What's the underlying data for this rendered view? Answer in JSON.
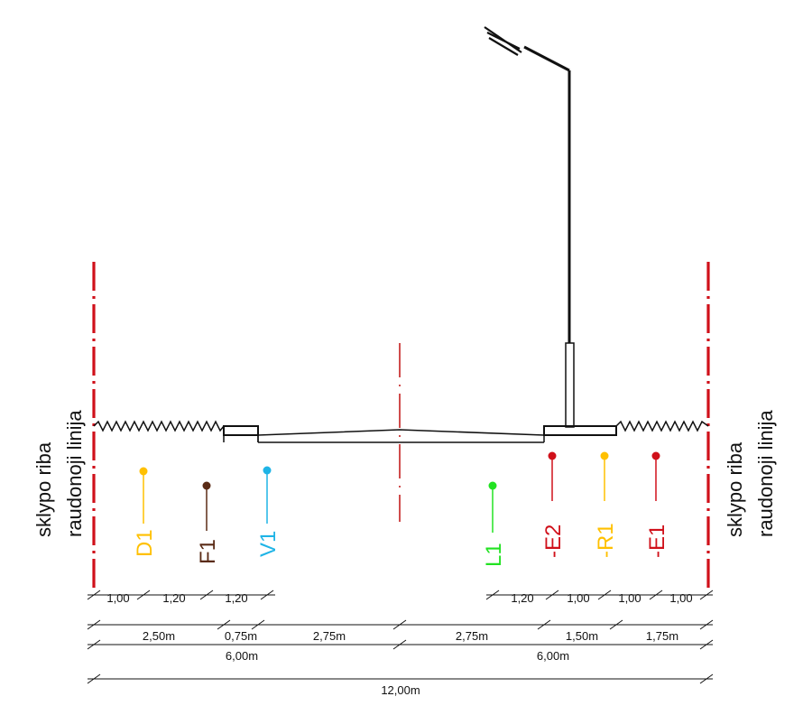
{
  "boundary": {
    "left_label_line1": "sklypo riba",
    "left_label_line2": "raudonoji linija",
    "right_label_line1": "sklypo riba",
    "right_label_line2": "raudonoji linija"
  },
  "utilities": {
    "D1": {
      "label": "D1",
      "color": "#FFC000"
    },
    "F1": {
      "label": "F1",
      "color": "#5A2B16"
    },
    "V1": {
      "label": "V1",
      "color": "#1FB4E6"
    },
    "L1": {
      "label": "L1",
      "color": "#22E222"
    },
    "E2": {
      "label": "-E2",
      "color": "#D0101A"
    },
    "R1": {
      "label": "-R1",
      "color": "#FFC000"
    },
    "E1": {
      "label": "-E1",
      "color": "#D0101A"
    }
  },
  "dimensions": {
    "row1": [
      "1,00",
      "1,20",
      "1,20",
      "1,20",
      "1,00",
      "1,00",
      "1,00"
    ],
    "row2": [
      "2,50m",
      "0,75m",
      "2,75m",
      "2,75m",
      "1,50m",
      "1,75m"
    ],
    "row3": [
      "6,00m",
      "6,00m"
    ],
    "row4": [
      "12,00m"
    ]
  },
  "colors": {
    "boundary_line": "#D0101A",
    "centerline": "#C01010",
    "structure": "#111111"
  }
}
